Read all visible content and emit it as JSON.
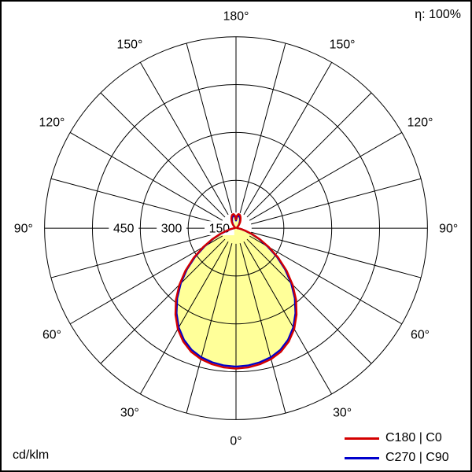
{
  "header": {
    "efficiency": "η: 100%"
  },
  "footer": {
    "unit": "cd/klm"
  },
  "chart_data": {
    "type": "polar",
    "subtype": "luminous-intensity-distribution",
    "unit": "cd/klm",
    "efficiency_label": "η: 100%",
    "radial_axis": {
      "ticks": [
        150,
        300,
        450
      ],
      "max": 600
    },
    "angular_axis": {
      "label_angles_deg": [
        0,
        30,
        60,
        90,
        120,
        150,
        180
      ],
      "grid_step_deg": 15,
      "zero_direction": "down",
      "mirrored": true
    },
    "gamma_deg": [
      0,
      5,
      10,
      15,
      20,
      25,
      30,
      35,
      40,
      45,
      50,
      55,
      60,
      65,
      70,
      75,
      80,
      85,
      90,
      95,
      100,
      105,
      110,
      115,
      120,
      125,
      130,
      135,
      140,
      145,
      150,
      155,
      160,
      165,
      170,
      175,
      180
    ],
    "series": [
      {
        "name": "C180 | C0",
        "color": "#d40000",
        "values": [
          440,
          438,
          433,
          425,
          412,
          392,
          365,
          331,
          293,
          251,
          207,
          162,
          119,
          83,
          53,
          31,
          17,
          9,
          6,
          4,
          3,
          3,
          3,
          3,
          3,
          4,
          6,
          10,
          16,
          22,
          28,
          34,
          40,
          44,
          45,
          40,
          28
        ]
      },
      {
        "name": "C270 | C90",
        "color": "#0000cc",
        "values": [
          434,
          432,
          427,
          419,
          406,
          386,
          359,
          325,
          287,
          245,
          201,
          157,
          114,
          79,
          50,
          29,
          16,
          8,
          5,
          4,
          3,
          3,
          3,
          3,
          3,
          4,
          5,
          9,
          14,
          19,
          24,
          30,
          35,
          39,
          40,
          35,
          24
        ]
      }
    ],
    "fill_color": "#ffff99",
    "grid_color": "#000000"
  }
}
